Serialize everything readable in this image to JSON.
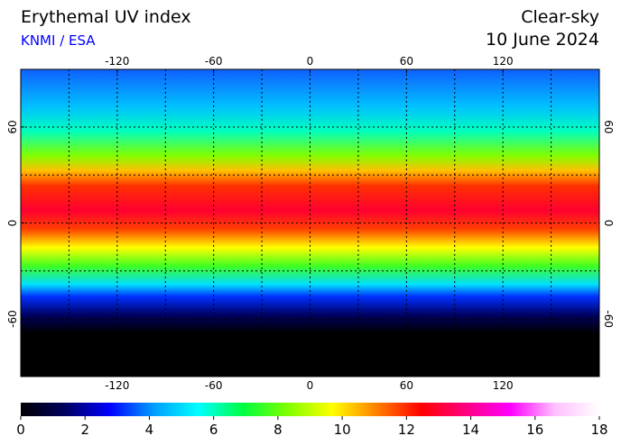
{
  "header": {
    "title": "Erythemal UV index",
    "source": "KNMI / ESA",
    "condition": "Clear-sky",
    "date": "10 June 2024"
  },
  "map": {
    "xlim": [
      -180,
      180
    ],
    "ylim": [
      -96,
      96
    ],
    "xticks": [
      -120,
      -60,
      0,
      60,
      120
    ],
    "yticks": [
      -60,
      0,
      60
    ]
  },
  "colorbar": {
    "clim": [
      0,
      18
    ],
    "ticks": [
      0,
      2,
      4,
      6,
      8,
      10,
      12,
      14,
      16,
      18
    ],
    "colors": [
      "#000000",
      "#000060",
      "#0000ff",
      "#00a0ff",
      "#00ffff",
      "#00ff40",
      "#80ff00",
      "#ffff00",
      "#ff8000",
      "#ff0000",
      "#ff0080",
      "#ff00ff",
      "#ffc0ff",
      "#ffffff"
    ]
  }
}
